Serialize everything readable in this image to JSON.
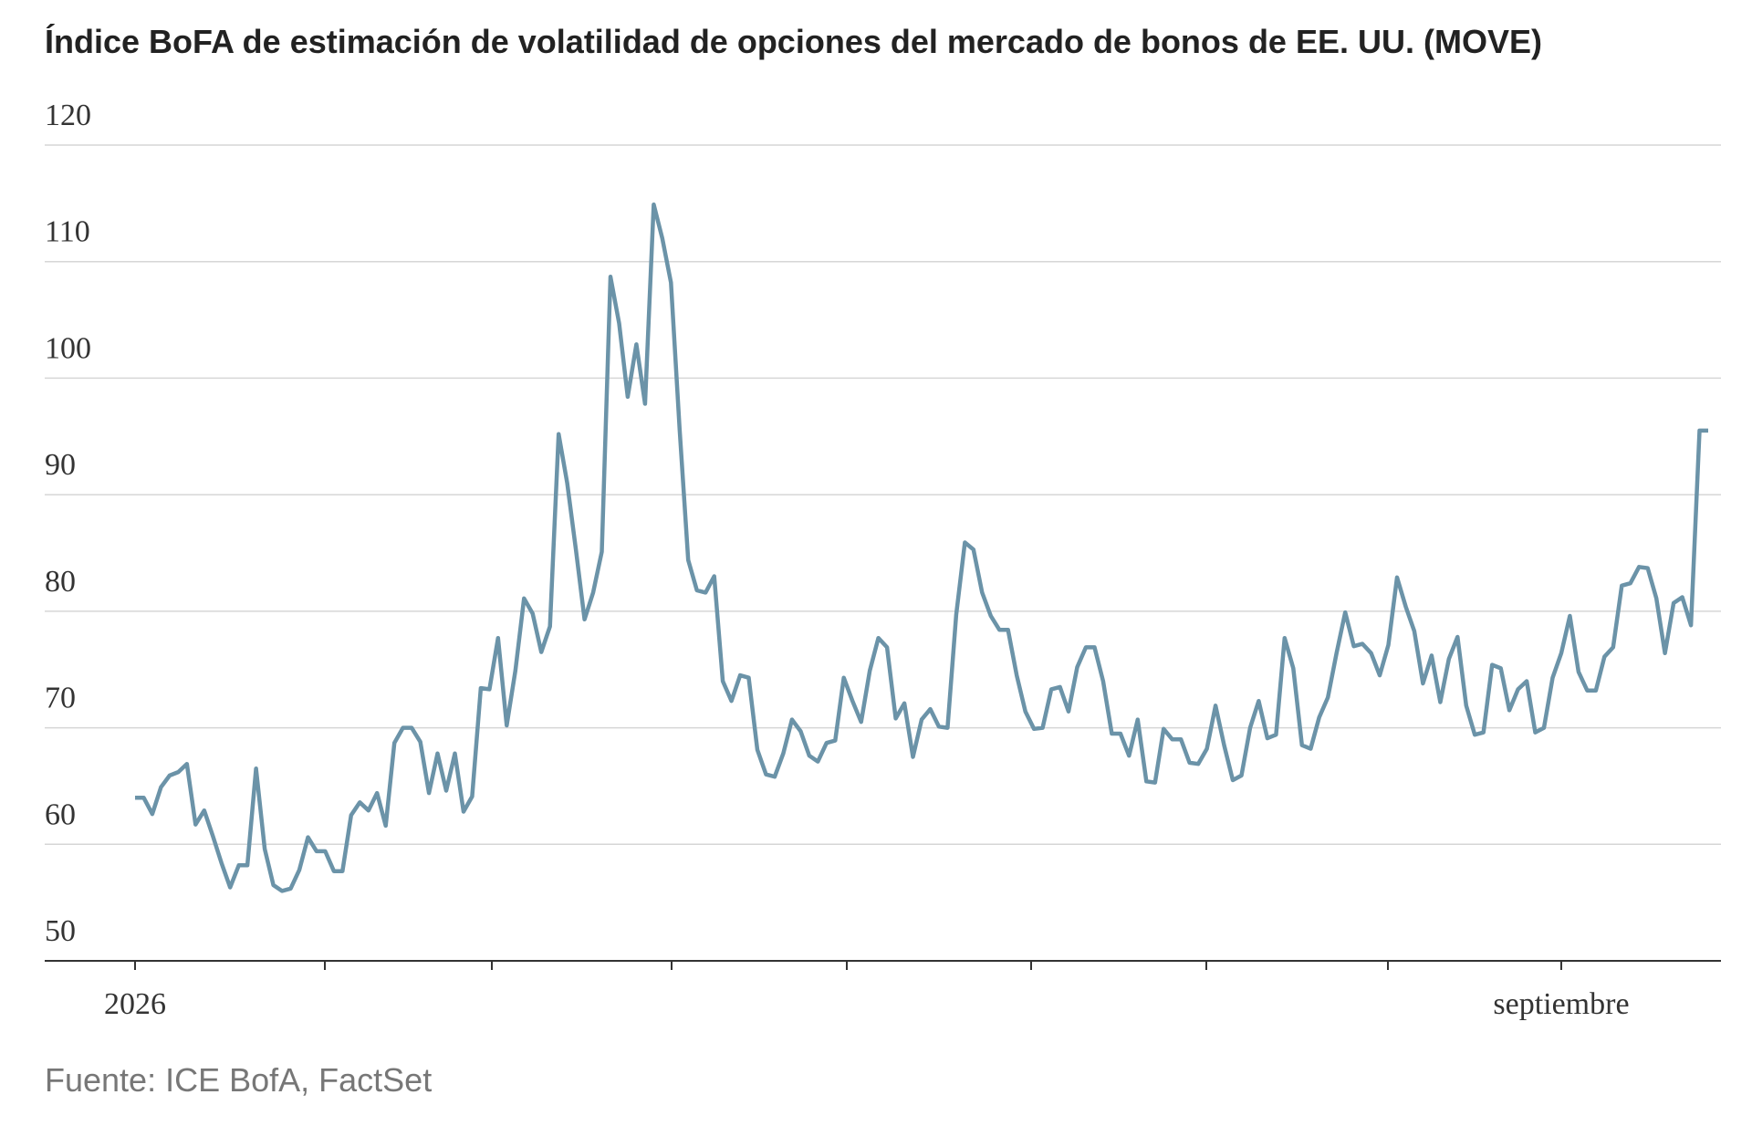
{
  "chart_data": {
    "type": "line",
    "title": "Índice BoFA de estimación de volatilidad de opciones del mercado de bonos de EE. UU. (MOVE)",
    "source": "Fuente: ICE BofA, FactSet",
    "categories": [
      "2026",
      null,
      null,
      null,
      null,
      null,
      null,
      null,
      null,
      null,
      null,
      null,
      null,
      null,
      null,
      null,
      null,
      null,
      null,
      null,
      null,
      null,
      null,
      null,
      null,
      null,
      null,
      null,
      null,
      null,
      null,
      null,
      null,
      null,
      null,
      null,
      null,
      null,
      null,
      null,
      null,
      null,
      null,
      null,
      null,
      null,
      null,
      null,
      null,
      null,
      null,
      null,
      null,
      null,
      null,
      null,
      null,
      null,
      null,
      null,
      null,
      null,
      null,
      null,
      null,
      null,
      null,
      null,
      null,
      null,
      null,
      null,
      null,
      null,
      null,
      null,
      null,
      null,
      null,
      null,
      null,
      null,
      null,
      null,
      null,
      null,
      null,
      null,
      null,
      null,
      null,
      null,
      null,
      null,
      null,
      null,
      null,
      null,
      null,
      null,
      null,
      null,
      null,
      null,
      null,
      null,
      null,
      null,
      null,
      null,
      null,
      null,
      null,
      null,
      null,
      null,
      null,
      null,
      null,
      null,
      null,
      null,
      null,
      null,
      null,
      null,
      null,
      null,
      null,
      null,
      null,
      null,
      null,
      null,
      null,
      null,
      null,
      null,
      null,
      null,
      null,
      null,
      null,
      null,
      null,
      null,
      null,
      null,
      null,
      null,
      null,
      null,
      null,
      null,
      null,
      null,
      null,
      null,
      null,
      null,
      null,
      null,
      null,
      null,
      null,
      "septiembre",
      null,
      null,
      null,
      null,
      null,
      null,
      null,
      null,
      null,
      null,
      null,
      null,
      null,
      null,
      null,
      null,
      null
    ],
    "series": [
      {
        "name": "MOVE",
        "color": "#6b93a8",
        "values": [
          64.0,
          64.0,
          62.6,
          64.9,
          65.9,
          66.2,
          66.9,
          61.7,
          62.9,
          60.7,
          58.4,
          56.3,
          58.2,
          58.2,
          66.5,
          59.6,
          56.5,
          56.0,
          56.2,
          57.8,
          60.6,
          59.4,
          59.4,
          57.7,
          57.7,
          62.5,
          63.6,
          62.9,
          64.4,
          61.6,
          68.7,
          70.0,
          70.0,
          68.8,
          64.4,
          67.8,
          64.6,
          67.8,
          62.8,
          64.1,
          73.4,
          73.3,
          77.7,
          70.2,
          74.9,
          81.1,
          79.8,
          76.5,
          78.7,
          95.2,
          91.0,
          85.3,
          79.3,
          81.6,
          85.1,
          108.7,
          104.7,
          98.4,
          102.9,
          97.8,
          114.9,
          112.0,
          108.2,
          95.6,
          84.4,
          81.8,
          81.6,
          83.0,
          74.0,
          72.3,
          74.5,
          74.3,
          68.1,
          66.0,
          65.8,
          67.8,
          70.7,
          69.7,
          67.6,
          67.1,
          68.7,
          68.9,
          74.3,
          72.3,
          70.5,
          74.9,
          77.7,
          76.9,
          70.8,
          72.1,
          67.5,
          70.7,
          71.6,
          70.1,
          70.0,
          79.7,
          85.9,
          85.3,
          81.6,
          79.6,
          78.4,
          78.4,
          74.5,
          71.4,
          69.9,
          70.0,
          73.3,
          73.5,
          71.4,
          75.2,
          76.9,
          76.9,
          74.0,
          69.5,
          69.5,
          67.6,
          70.7,
          65.4,
          65.3,
          69.9,
          69.0,
          69.0,
          67.0,
          66.9,
          68.2,
          71.9,
          68.5,
          65.5,
          65.9,
          70.0,
          72.3,
          69.1,
          69.4,
          77.7,
          75.1,
          68.5,
          68.2,
          70.9,
          72.6,
          76.4,
          79.9,
          77.0,
          77.2,
          76.4,
          74.5,
          77.1,
          82.9,
          80.4,
          78.3,
          73.8,
          76.2,
          72.2,
          75.9,
          77.8,
          71.9,
          69.4,
          69.6,
          75.4,
          75.1,
          71.5,
          73.3,
          74.0,
          69.6,
          70.0,
          74.3,
          76.4,
          79.6,
          74.8,
          73.2,
          73.2,
          76.1,
          76.9,
          82.2,
          82.4,
          83.8,
          83.7,
          81.1,
          76.4,
          80.7,
          81.2,
          78.8,
          95.5,
          95.5
        ]
      }
    ],
    "ylim": [
      50,
      120
    ],
    "yticks": [
      50,
      60,
      70,
      80,
      90,
      100,
      110,
      120
    ],
    "grid": true
  }
}
